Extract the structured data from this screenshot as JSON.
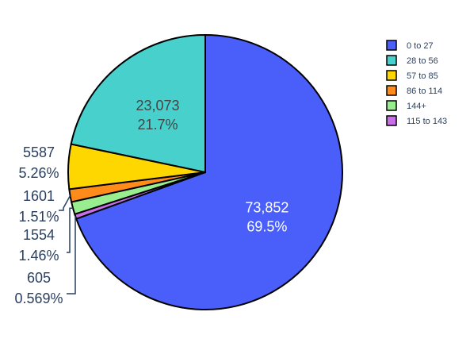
{
  "chart_data": {
    "type": "pie",
    "title": "",
    "direction": "clockwise",
    "start_angle_deg": 0,
    "slices": [
      {
        "label": "0 to 27",
        "value": 73852,
        "value_text": "73,852",
        "percent_text": "69.5%",
        "color": "#4a5ffa"
      },
      {
        "label": "115 to 143",
        "value": 605,
        "value_text": "605",
        "percent_text": "0.569%",
        "color": "#c86ee6"
      },
      {
        "label": "144+",
        "value": 1554,
        "value_text": "1554",
        "percent_text": "1.46%",
        "color": "#98ee8e"
      },
      {
        "label": "86 to 114",
        "value": 1601,
        "value_text": "1601",
        "percent_text": "1.51%",
        "color": "#ff8c1a"
      },
      {
        "label": "57 to 85",
        "value": 5587,
        "value_text": "5587",
        "percent_text": "5.26%",
        "color": "#ffd700"
      },
      {
        "label": "28 to 56",
        "value": 23073,
        "value_text": "23,073",
        "percent_text": "21.7%",
        "color": "#48d1cc"
      }
    ],
    "legend": {
      "position": "top-right",
      "order": [
        "0 to 27",
        "28 to 56",
        "57 to 85",
        "86 to 114",
        "144+",
        "115 to 143"
      ]
    }
  }
}
